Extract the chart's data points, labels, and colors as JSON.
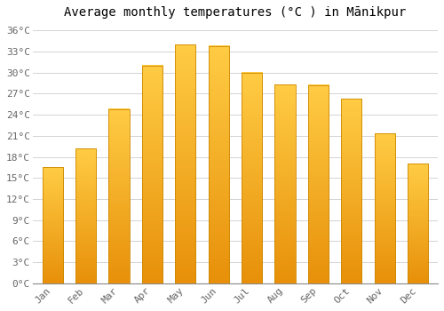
{
  "title": "Average monthly temperatures (°C ) in Mānikpur",
  "months": [
    "Jan",
    "Feb",
    "Mar",
    "Apr",
    "May",
    "Jun",
    "Jul",
    "Aug",
    "Sep",
    "Oct",
    "Nov",
    "Dec"
  ],
  "temperatures": [
    16.5,
    19.2,
    24.8,
    31.0,
    34.0,
    33.8,
    30.0,
    28.3,
    28.2,
    26.3,
    21.3,
    17.0
  ],
  "bar_color_top": "#FFB900",
  "bar_color_bottom": "#FFA500",
  "bar_edge_color": "#CC8800",
  "background_color": "#FFFFFF",
  "grid_color": "#CCCCCC",
  "ytick_labels": [
    "0°C",
    "3°C",
    "6°C",
    "9°C",
    "12°C",
    "15°C",
    "18°C",
    "21°C",
    "24°C",
    "27°C",
    "30°C",
    "33°C",
    "36°C"
  ],
  "ytick_values": [
    0,
    3,
    6,
    9,
    12,
    15,
    18,
    21,
    24,
    27,
    30,
    33,
    36
  ],
  "ylim": [
    0,
    37
  ],
  "title_fontsize": 10,
  "tick_fontsize": 8,
  "font_family": "monospace"
}
